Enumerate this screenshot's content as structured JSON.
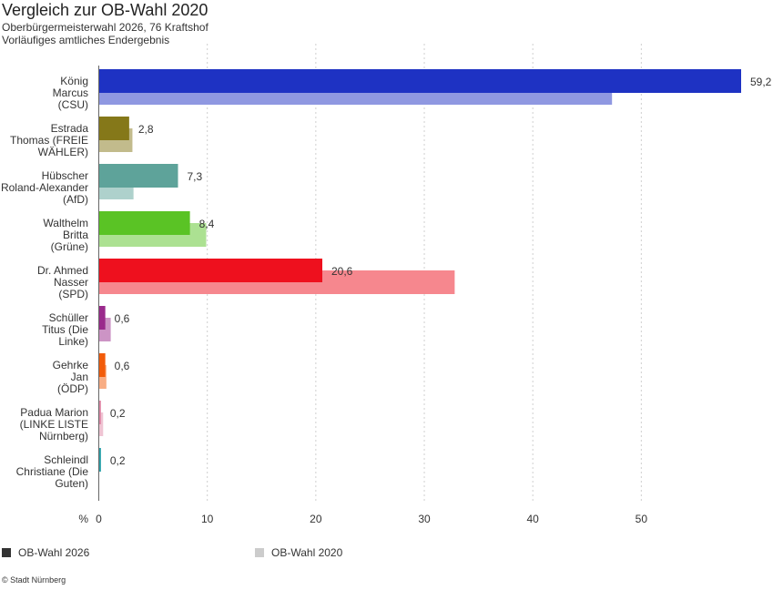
{
  "title": "Vergleich zur OB-Wahl 2020",
  "subtitle": "Oberbürgermeisterwahl 2026, 76 Kraftshof",
  "subtitle2": "Vorläufiges amtliches Endergebnis",
  "source": "© Stadt Nürnberg",
  "legend": [
    {
      "label": "OB-Wahl 2026",
      "color": "#333333"
    },
    {
      "label": "OB-Wahl 2020",
      "color": "#cccccc"
    }
  ],
  "chart_data": {
    "type": "bar",
    "orientation": "horizontal",
    "unit_label": "%",
    "xlim": [
      0,
      59.2
    ],
    "xticks": [
      "0",
      "10",
      "20",
      "30",
      "40",
      "50"
    ],
    "grid": true,
    "categories": [
      [
        "König",
        "Marcus",
        "(CSU)"
      ],
      [
        "Estrada",
        "Thomas (FREIE",
        "WÄHLER)"
      ],
      [
        "Hübscher",
        "Roland-Alexander",
        "(AfD)"
      ],
      [
        "Walthelm",
        "Britta",
        "(Grüne)"
      ],
      [
        "Dr. Ahmed",
        "Nasser",
        "(SPD)"
      ],
      [
        "Schüller",
        "Titus (Die",
        "Linke)"
      ],
      [
        "Gehrke",
        "Jan",
        "(ÖDP)"
      ],
      [
        "Padua Marion",
        "(LINKE LISTE",
        "Nürnberg)"
      ],
      [
        "Schleindl",
        "Christiane (Die",
        "Guten)"
      ]
    ],
    "series": [
      {
        "name": "OB-Wahl 2026",
        "values": [
          59.2,
          2.8,
          7.3,
          8.4,
          20.6,
          0.6,
          0.6,
          0.2,
          0.2
        ],
        "labels": [
          "59,2",
          "2,8",
          "7,3",
          "8,4",
          "20,6",
          "0,6",
          "0,6",
          "0,2",
          "0,2"
        ],
        "colors": [
          "#1e32c3",
          "#857819",
          "#5ea39a",
          "#5ac325",
          "#ee101e",
          "#9a2a8c",
          "#f25c0a",
          "#e08aa8",
          "#2aa0a8"
        ]
      },
      {
        "name": "OB-Wahl 2020",
        "values": [
          47.3,
          3.1,
          3.2,
          9.9,
          32.8,
          1.1,
          0.7,
          0.4,
          0.0
        ],
        "colors": [
          "#8f98e1",
          "#c2bb8c",
          "#aed1cc",
          "#ace192",
          "#f6878e",
          "#cc94c5",
          "#f8ad84",
          "#efc4d3",
          "#94cfd3"
        ]
      }
    ]
  }
}
